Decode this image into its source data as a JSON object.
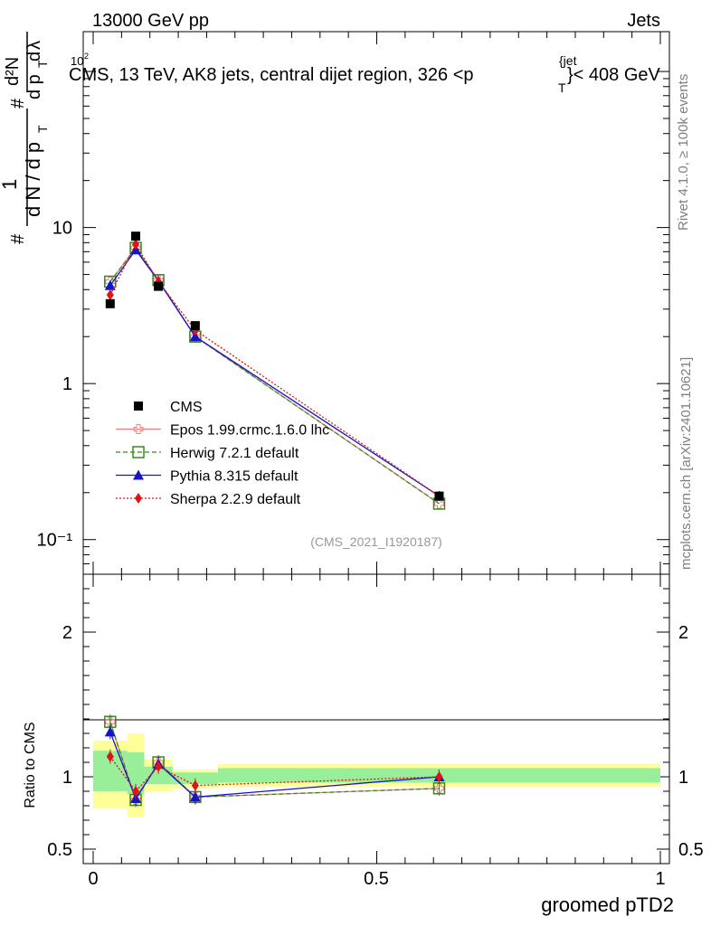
{
  "header": {
    "energy": "13000 GeV pp",
    "category": "Jets"
  },
  "side_labels": {
    "rivet": "Rivet 4.1.0, ≥ 100k events",
    "source": "mcplots.cern.ch [arXiv:2401.10621]"
  },
  "analysis_id": "(CMS_2021_I1920187)",
  "chart_data": {
    "type": "line",
    "title": "CMS, 13 TeV, AK8 jets, central dijet region, 326 <p",
    "title_sup": "{jet",
    "title_sub": "T",
    "title_end": "}< 408 GeV",
    "ylabel_main": "# 1/dN/dp_T # d²N/dp_T dλ",
    "xlabel": "groomed pTD2",
    "ratio_ylabel": "Ratio to CMS",
    "xlim": [
      0,
      1
    ],
    "ylim": [
      0.06,
      180
    ],
    "ratio_ylim": [
      0.4,
      2.4
    ],
    "x_tick_labels": [
      "0",
      "0.5",
      "1"
    ],
    "y_tick_labels": [
      "10⁻¹",
      "1",
      "10",
      "10²"
    ],
    "ratio_tick_labels": [
      "0.5",
      "1",
      "2"
    ],
    "x": [
      0.03,
      0.075,
      0.115,
      0.18,
      0.61
    ],
    "bin_edges": [
      0,
      0.06,
      0.09,
      0.14,
      0.22,
      1.0
    ],
    "ref": {
      "name": "CMS",
      "values": [
        3.25,
        8.8,
        4.2,
        2.35,
        0.19
      ]
    },
    "band": {
      "inner": [
        [
          0.9,
          1.18
        ],
        [
          0.88,
          1.17
        ],
        [
          0.95,
          1.07
        ],
        [
          0.95,
          1.03
        ],
        [
          0.96,
          1.06
        ]
      ],
      "outer": [
        [
          0.78,
          1.25
        ],
        [
          0.72,
          1.3
        ],
        [
          0.9,
          1.12
        ],
        [
          0.92,
          1.05
        ],
        [
          0.93,
          1.09
        ]
      ]
    },
    "series": [
      {
        "name": "Epos 1.99.crmc.1.6.0 lhc",
        "color": "#f08080",
        "dash": "none",
        "marker": "open-cross",
        "values": [
          4.5,
          7.4,
          4.6,
          2.0,
          0.17
        ],
        "ratio": [
          1.38,
          0.84,
          1.1,
          0.86,
          0.92
        ]
      },
      {
        "name": "Herwig 7.2.1 default",
        "color": "#3a8a1e",
        "dash": "5,3",
        "marker": "open-square",
        "values": [
          4.5,
          7.4,
          4.6,
          2.0,
          0.17
        ],
        "ratio": [
          1.38,
          0.84,
          1.1,
          0.86,
          0.92
        ]
      },
      {
        "name": "Pythia 8.315 default",
        "color": "#1414c8",
        "dash": "none",
        "marker": "triangle",
        "values": [
          4.25,
          7.2,
          4.55,
          2.0,
          0.19
        ],
        "ratio": [
          1.31,
          0.85,
          1.09,
          0.86,
          1.0
        ]
      },
      {
        "name": "Sherpa 2.2.9 default",
        "color": "#e01414",
        "dash": "2,2",
        "marker": "diamond",
        "values": [
          3.7,
          7.8,
          4.5,
          2.2,
          0.19
        ],
        "ratio": [
          1.14,
          0.9,
          1.07,
          0.94,
          1.0
        ]
      }
    ]
  }
}
